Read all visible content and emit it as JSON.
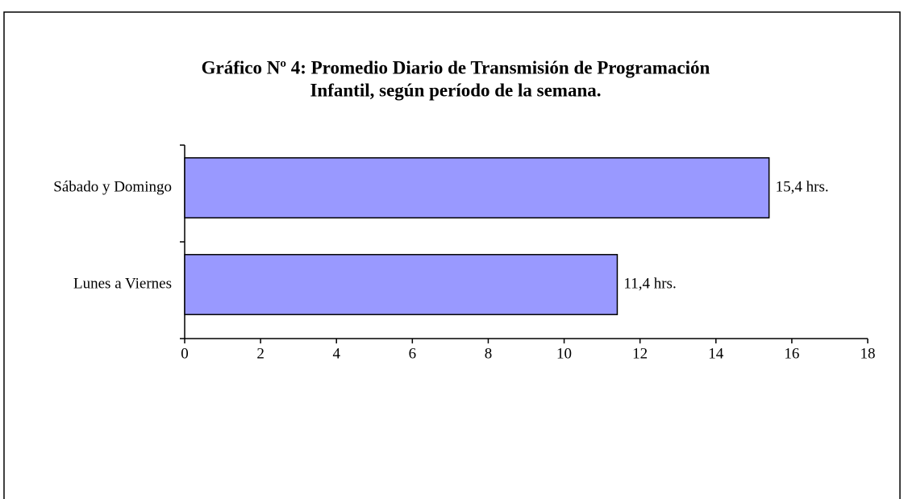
{
  "chart_data": {
    "type": "bar",
    "orientation": "horizontal",
    "title": [
      "Gráfico Nº 4: Promedio Diario de Transmisión de Programación",
      "Infantil, según período de la semana."
    ],
    "categories": [
      "Lunes a Viernes",
      "Sábado y Domingo"
    ],
    "values": [
      11.4,
      15.4
    ],
    "value_labels": [
      "11,4 hrs.",
      "15,4 hrs."
    ],
    "color": "#9999ff",
    "xlim": [
      0,
      18
    ],
    "xticks": [
      0,
      2,
      4,
      6,
      8,
      10,
      12,
      14,
      16,
      18
    ]
  }
}
